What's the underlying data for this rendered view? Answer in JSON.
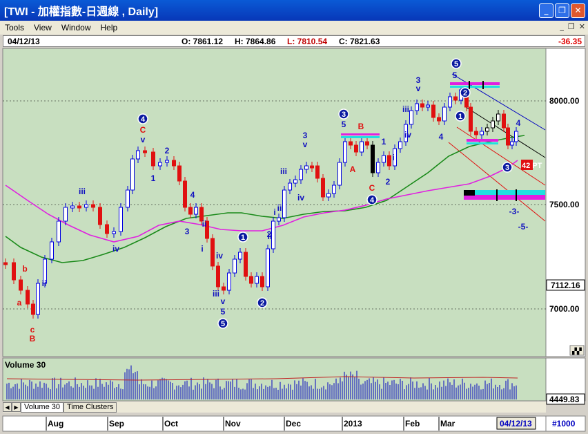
{
  "window": {
    "title": "[TWI - 加權指數-日週線 , Daily]"
  },
  "menu": [
    "Tools",
    "View",
    "Window",
    "Help"
  ],
  "quote": {
    "date": "04/12/13",
    "open": "O: 7861.12",
    "high": "H: 7864.86",
    "low": "L: 7810.54",
    "close": "C: 7821.63",
    "change": "-36.35"
  },
  "price_axis": {
    "labels": [
      "8000.00",
      "7500.00",
      "7000.00"
    ],
    "current": "7112.16"
  },
  "volume": {
    "title": "Volume 30",
    "value": "4449.83"
  },
  "tabs": [
    "Volume 30",
    "Time Clusters"
  ],
  "time_axis": {
    "labels": [
      "Aug",
      "Sep",
      "Oct",
      "Nov",
      "Dec",
      "2013",
      "Feb",
      "Mar"
    ],
    "current_date": "04/12/13",
    "bar_count": "#1000"
  },
  "annotations": {
    "blue_circles": [
      "4",
      "5",
      "1",
      "2",
      "3",
      "4",
      "5",
      "2",
      "1",
      "3"
    ],
    "pt_label": "42 PT",
    "wave_text": [
      "a",
      "b",
      "c",
      "B",
      "C",
      "iii",
      "iv",
      "ii",
      "ii",
      "v",
      "1",
      "2",
      "4",
      "3",
      "ii",
      "i",
      "iii",
      "iv",
      "v",
      "5",
      "i",
      "ii",
      "2",
      "iii",
      "iv",
      "3",
      "v",
      "5",
      "B",
      "A",
      "C",
      "1",
      "i",
      "2",
      "iii",
      "iv",
      "3",
      "v",
      "4",
      "5",
      "-3-",
      "-5-",
      "4"
    ]
  },
  "colors": {
    "chart_bg": "#c8dfc0",
    "ma_fast": "#1a8a1a",
    "ma_slow": "#e020e0",
    "up": "#0000e0",
    "down": "#e01010",
    "neutral": "#000000",
    "wave_label": "#1010c0"
  }
}
